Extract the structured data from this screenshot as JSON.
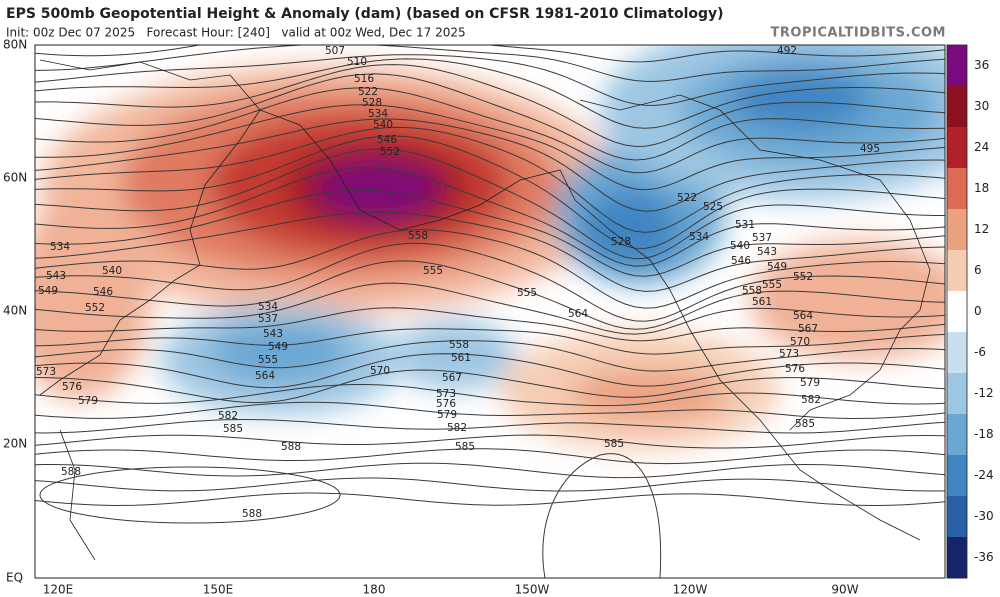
{
  "header": {
    "title": "EPS 500mb Geopotential Height & Anomaly (dam) (based on CFSR 1981-2010 Climatology)",
    "subtitle": "Init: 00z Dec 07 2025   Forecast Hour: [240]   valid at 00z Wed, Dec 17 2025",
    "brand": "TROPICALTIDBITS.COM"
  },
  "map": {
    "lat_labels": [
      "80N",
      "60N",
      "40N",
      "20N",
      "EQ"
    ],
    "lon_labels": [
      "120E",
      "150E",
      "180",
      "150W",
      "120W",
      "90W"
    ],
    "contour_labels": [
      "507",
      "510",
      "516",
      "522",
      "528",
      "534",
      "540",
      "546",
      "552",
      "558",
      "555",
      "555",
      "564",
      "534",
      "540",
      "543",
      "549",
      "546",
      "552",
      "573",
      "576",
      "579",
      "534",
      "537",
      "543",
      "549",
      "555",
      "564",
      "570",
      "558",
      "561",
      "567",
      "573",
      "576",
      "579",
      "582",
      "585",
      "582",
      "585",
      "588",
      "588",
      "588",
      "585",
      "492",
      "495",
      "522",
      "525",
      "531",
      "528",
      "534",
      "537",
      "540",
      "543",
      "546",
      "549",
      "552",
      "555",
      "558",
      "561",
      "564",
      "567",
      "570",
      "573",
      "576",
      "579",
      "582",
      "585"
    ]
  },
  "colorbar": {
    "labels": [
      "36",
      "30",
      "24",
      "18",
      "12",
      "6",
      "0",
      "-6",
      "-12",
      "-18",
      "-24",
      "-30",
      "-36"
    ]
  }
}
